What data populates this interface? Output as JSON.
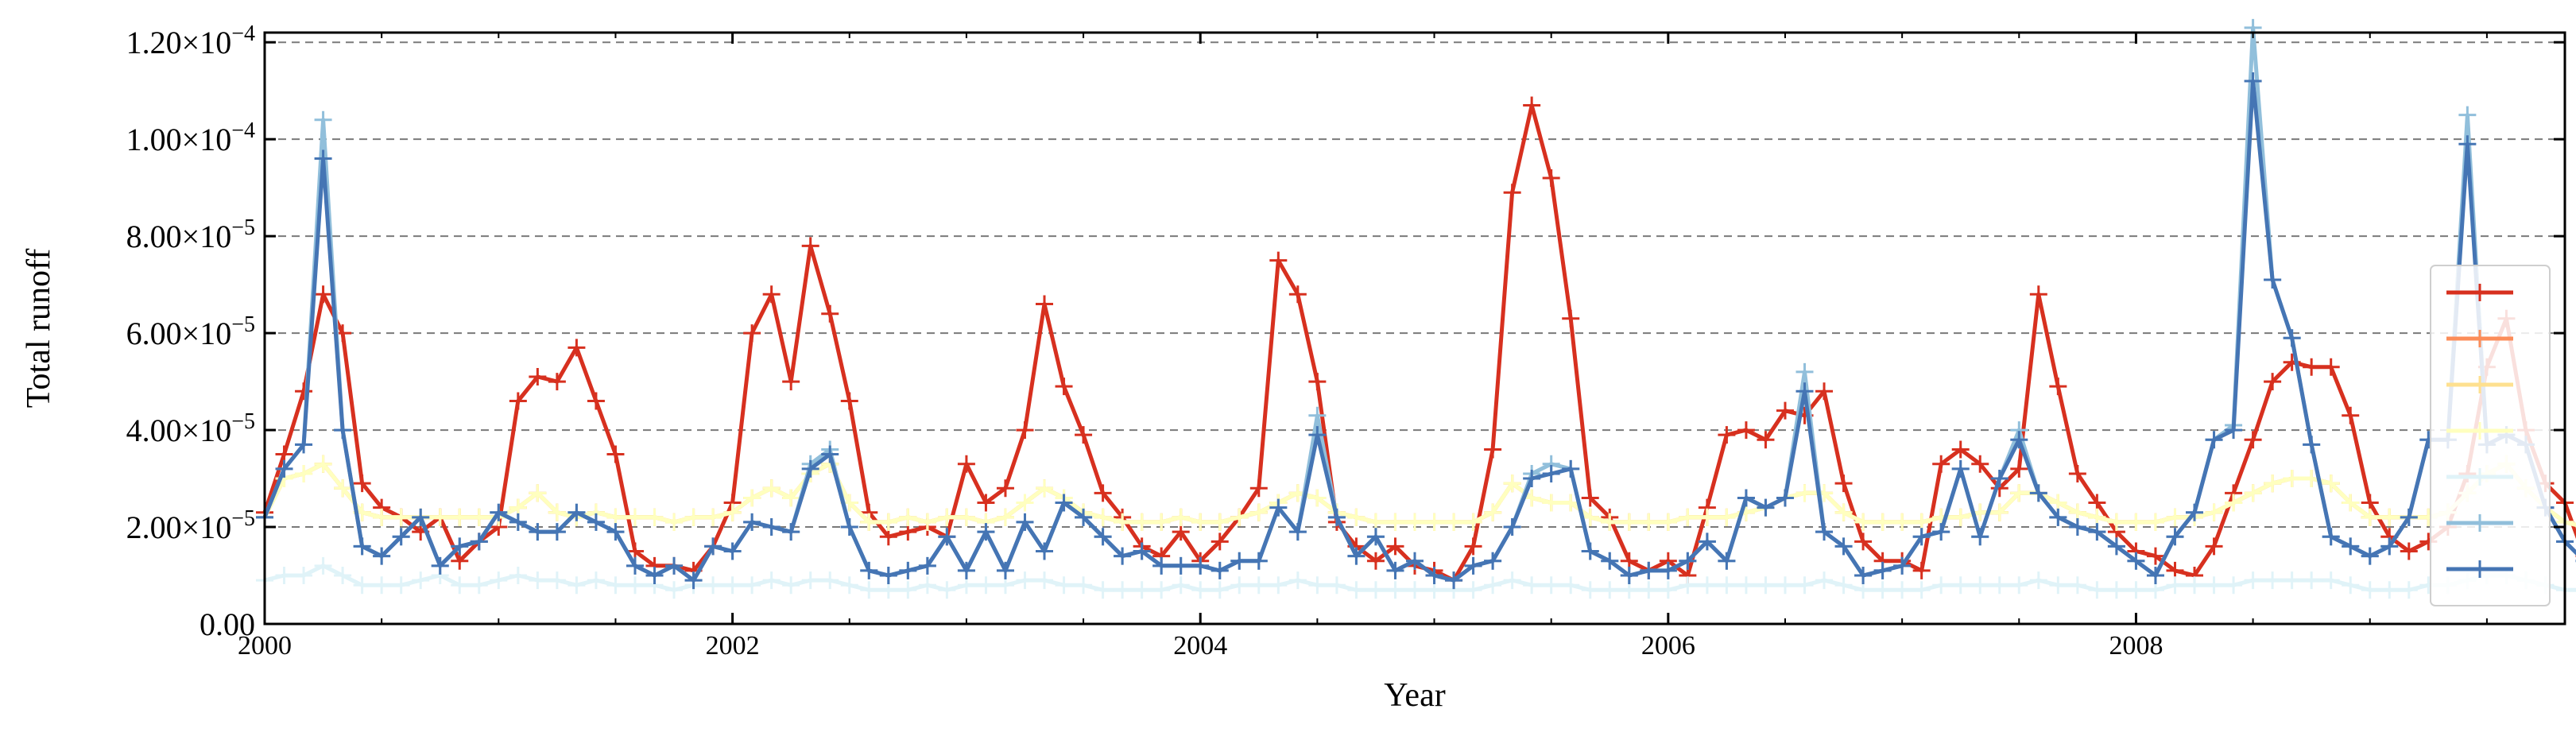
{
  "chart_data": {
    "type": "line",
    "title": "",
    "xlabel": "Year",
    "ylabel": "Total runoff",
    "xlim": [
      "2000-01",
      "2009-11"
    ],
    "ylim": [
      0,
      0.000122
    ],
    "x_ticks": [
      {
        "value": "2000-01",
        "label": "2000"
      },
      {
        "value": "2002-01",
        "label": "2002"
      },
      {
        "value": "2004-01",
        "label": "2004"
      },
      {
        "value": "2006-01",
        "label": "2006"
      },
      {
        "value": "2008-01",
        "label": "2008"
      }
    ],
    "y_ticks": [
      {
        "value": 0,
        "mantissa": "0.00",
        "exp": ""
      },
      {
        "value": 2e-05,
        "mantissa": "2.00×10",
        "exp": "−5"
      },
      {
        "value": 4e-05,
        "mantissa": "4.00×10",
        "exp": "−5"
      },
      {
        "value": 6e-05,
        "mantissa": "6.00×10",
        "exp": "−5"
      },
      {
        "value": 8e-05,
        "mantissa": "8.00×10",
        "exp": "−5"
      },
      {
        "value": 0.0001,
        "mantissa": "1.00×10",
        "exp": "−4"
      },
      {
        "value": 0.00012,
        "mantissa": "1.20×10",
        "exp": "−4"
      }
    ],
    "grid": "y-dashed",
    "legend_position": "right",
    "x_start": "2000-01",
    "x_step": "1 month",
    "series": [
      {
        "color": "#d7301f",
        "values": [
          23,
          35,
          48,
          68,
          60,
          29,
          24,
          22,
          19,
          22,
          13,
          17,
          20,
          46,
          51,
          50,
          57,
          46,
          35,
          15,
          12,
          12,
          11,
          16,
          25,
          60,
          68,
          50,
          78,
          64,
          46,
          23,
          18,
          19,
          20,
          18,
          33,
          25,
          28,
          40,
          66,
          49,
          39,
          27,
          22,
          16,
          14,
          19,
          13,
          17,
          22,
          28,
          75,
          68,
          50,
          21,
          16,
          13,
          16,
          12,
          11,
          9,
          16,
          36,
          89,
          107,
          92,
          63,
          26,
          22,
          13,
          11,
          13,
          10,
          24,
          39,
          40,
          38,
          44,
          43,
          48,
          29,
          17,
          13,
          13,
          11,
          33,
          36,
          33,
          28,
          32,
          68,
          49,
          31,
          25,
          19,
          15,
          14,
          11,
          10,
          16,
          27,
          38,
          50,
          54,
          53,
          53,
          43,
          25,
          18,
          15,
          17,
          20,
          31,
          53,
          63,
          40,
          29,
          25,
          14,
          11,
          10,
          10
        ]
      },
      {
        "color": "#fc8d59",
        "values": [
          22,
          30,
          31,
          33,
          28,
          23,
          22,
          22,
          22,
          22,
          22,
          22,
          22,
          24,
          27,
          23,
          22,
          23,
          22,
          22,
          22,
          21,
          22,
          22,
          23,
          26,
          28,
          26,
          31,
          33,
          25,
          21,
          21,
          22,
          21,
          22,
          22,
          21,
          22,
          25,
          28,
          26,
          23,
          22,
          21,
          21,
          21,
          22,
          21,
          21,
          22,
          23,
          25,
          27,
          26,
          23,
          22,
          21,
          21,
          21,
          21,
          21,
          21,
          23,
          29,
          26,
          25,
          25,
          22,
          21,
          21,
          21,
          21,
          22,
          22,
          22,
          23,
          24,
          26,
          27,
          27,
          23,
          21,
          21,
          21,
          21,
          22,
          22,
          23,
          23,
          27,
          27,
          25,
          23,
          22,
          21,
          21,
          21,
          22,
          22,
          23,
          25,
          27,
          29,
          30,
          30,
          29,
          25,
          22,
          22,
          22,
          22,
          23,
          27,
          31,
          33,
          28,
          24,
          21,
          20,
          20,
          21,
          21
        ]
      },
      {
        "color": "#fee090",
        "values": [
          22,
          30,
          31,
          33,
          28,
          23,
          22,
          22,
          22,
          22,
          22,
          22,
          22,
          24,
          27,
          23,
          22,
          23,
          22,
          22,
          22,
          21,
          22,
          22,
          23,
          26,
          28,
          26,
          31,
          33,
          25,
          21,
          21,
          22,
          21,
          22,
          22,
          21,
          22,
          25,
          28,
          26,
          23,
          22,
          21,
          21,
          21,
          22,
          21,
          21,
          22,
          23,
          25,
          27,
          26,
          23,
          22,
          21,
          21,
          21,
          21,
          21,
          21,
          23,
          29,
          26,
          25,
          25,
          22,
          21,
          21,
          21,
          21,
          22,
          22,
          22,
          23,
          24,
          26,
          27,
          27,
          23,
          21,
          21,
          21,
          21,
          22,
          22,
          23,
          23,
          27,
          27,
          25,
          23,
          22,
          21,
          21,
          21,
          22,
          22,
          23,
          25,
          27,
          29,
          30,
          30,
          29,
          25,
          22,
          22,
          22,
          22,
          23,
          27,
          31,
          33,
          28,
          24,
          21,
          20,
          20,
          21,
          21
        ]
      },
      {
        "color": "#ffffbf",
        "values": [
          22,
          30,
          31,
          33,
          28,
          23,
          22,
          22,
          22,
          22,
          22,
          22,
          22,
          24,
          27,
          23,
          22,
          23,
          22,
          22,
          22,
          21,
          22,
          22,
          23,
          26,
          28,
          26,
          31,
          33,
          25,
          21,
          21,
          22,
          21,
          22,
          22,
          21,
          22,
          25,
          28,
          26,
          23,
          22,
          21,
          21,
          21,
          22,
          21,
          21,
          22,
          23,
          25,
          27,
          26,
          23,
          22,
          21,
          21,
          21,
          21,
          21,
          21,
          23,
          29,
          26,
          25,
          25,
          22,
          21,
          21,
          21,
          21,
          22,
          22,
          22,
          23,
          24,
          26,
          27,
          27,
          23,
          21,
          21,
          21,
          21,
          22,
          22,
          23,
          23,
          27,
          27,
          25,
          23,
          22,
          21,
          21,
          21,
          22,
          22,
          23,
          25,
          27,
          29,
          30,
          30,
          29,
          25,
          22,
          22,
          22,
          22,
          23,
          27,
          31,
          33,
          28,
          24,
          21,
          20,
          20,
          21,
          21
        ]
      },
      {
        "color": "#e0f3f8",
        "values": [
          9,
          10,
          10,
          12,
          10,
          8,
          8,
          8,
          9,
          10,
          8,
          8,
          9,
          10,
          9,
          9,
          8,
          9,
          8,
          8,
          8,
          7,
          8,
          8,
          8,
          8,
          9,
          8,
          9,
          9,
          8,
          7,
          7,
          7,
          8,
          7,
          8,
          8,
          8,
          9,
          9,
          8,
          8,
          7,
          7,
          7,
          7,
          8,
          7,
          7,
          8,
          8,
          8,
          9,
          8,
          8,
          7,
          7,
          7,
          7,
          7,
          7,
          7,
          8,
          9,
          8,
          8,
          8,
          7,
          7,
          7,
          7,
          7,
          8,
          8,
          8,
          8,
          8,
          8,
          8,
          9,
          8,
          7,
          7,
          7,
          7,
          8,
          8,
          8,
          8,
          8,
          9,
          8,
          8,
          7,
          7,
          7,
          7,
          8,
          8,
          8,
          8,
          9,
          9,
          9,
          9,
          9,
          8,
          7,
          7,
          7,
          8,
          8,
          9,
          10,
          10,
          9,
          8,
          7,
          7,
          7,
          7,
          8
        ]
      },
      {
        "color": "#91bfdb",
        "values": [
          22,
          32,
          37,
          104,
          40,
          16,
          14,
          18,
          22,
          12,
          16,
          17,
          23,
          21,
          19,
          19,
          23,
          21,
          19,
          12,
          10,
          12,
          9,
          16,
          15,
          21,
          20,
          19,
          33,
          36,
          20,
          11,
          10,
          11,
          12,
          18,
          11,
          19,
          11,
          21,
          15,
          25,
          22,
          18,
          14,
          15,
          12,
          12,
          12,
          11,
          13,
          13,
          24,
          19,
          43,
          22,
          14,
          18,
          11,
          13,
          10,
          9,
          12,
          13,
          20,
          31,
          33,
          32,
          15,
          13,
          10,
          11,
          11,
          13,
          17,
          13,
          26,
          24,
          26,
          52,
          19,
          16,
          10,
          11,
          12,
          18,
          19,
          32,
          18,
          30,
          40,
          27,
          22,
          20,
          19,
          16,
          13,
          10,
          18,
          23,
          38,
          41,
          123,
          71,
          59,
          37,
          18,
          16,
          14,
          16,
          22,
          38,
          38,
          105,
          37,
          39,
          37,
          24,
          17,
          13,
          12,
          12,
          14
        ]
      },
      {
        "color": "#4575b4",
        "values": [
          22,
          32,
          37,
          96,
          40,
          16,
          14,
          18,
          22,
          12,
          16,
          17,
          23,
          21,
          19,
          19,
          23,
          21,
          19,
          12,
          10,
          12,
          9,
          16,
          15,
          21,
          20,
          19,
          32,
          35,
          20,
          11,
          10,
          11,
          12,
          18,
          11,
          19,
          11,
          21,
          15,
          25,
          22,
          18,
          14,
          15,
          12,
          12,
          12,
          11,
          13,
          13,
          24,
          19,
          39,
          22,
          14,
          18,
          11,
          13,
          10,
          9,
          12,
          13,
          20,
          30,
          31,
          32,
          15,
          13,
          10,
          11,
          11,
          13,
          17,
          13,
          26,
          24,
          26,
          48,
          19,
          16,
          10,
          11,
          12,
          18,
          19,
          32,
          18,
          30,
          38,
          27,
          22,
          20,
          19,
          16,
          13,
          10,
          18,
          23,
          38,
          40,
          112,
          71,
          59,
          37,
          18,
          16,
          14,
          16,
          22,
          38,
          38,
          99,
          37,
          39,
          37,
          24,
          17,
          13,
          12,
          12,
          14
        ]
      }
    ]
  }
}
